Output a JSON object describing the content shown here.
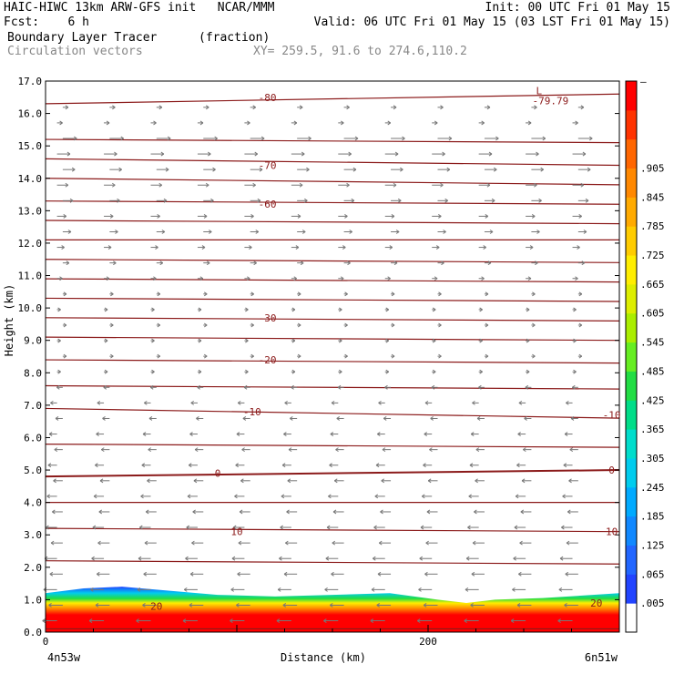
{
  "header": {
    "line1_left": "HAIC-HIWC 13km ARW-GFS init   NCAR/MMM",
    "line1_right": "Init: 00 UTC Fri 01 May 15",
    "line2_left": "Fcst:    6 h",
    "line2_right": "Valid: 06 UTC Fri 01 May 15 (03 LST Fri 01 May 15)",
    "line3_left": "Boundary Layer Tracer",
    "line3_units": "(fraction)",
    "line4_left": "Circulation vectors",
    "line4_xy": "XY= 259.5, 91.6 to 274.6,110.2"
  },
  "chart_data": {
    "type": "heatmap",
    "title": "Boundary Layer Tracer",
    "units": "(fraction)",
    "xlabel": "Distance (km)",
    "ylabel": "Height (km)",
    "xlim": [
      0,
      300
    ],
    "ylim": [
      0,
      17
    ],
    "y_ticks": [
      "0.0",
      "1.0",
      "2.0",
      "3.0",
      "4.0",
      "5.0",
      "6.0",
      "7.0",
      "8.0",
      "9.0",
      "10.0",
      "11.0",
      "12.0",
      "13.0",
      "14.0",
      "15.0",
      "16.0",
      "17.0"
    ],
    "x_ticks": [
      {
        "value": 0,
        "label": "0"
      },
      {
        "value": 200,
        "label": "200"
      }
    ],
    "x_endpoints": {
      "left": "4n53w",
      "right": "6n51w"
    },
    "colorbar": {
      "labels": [
        ".005",
        ".065",
        ".125",
        ".185",
        ".245",
        ".305",
        ".365",
        ".425",
        ".485",
        ".545",
        ".605",
        ".665",
        ".725",
        ".785",
        ".845",
        ".905"
      ],
      "top_label": "—",
      "colors": [
        "#ffffff",
        "#2244ff",
        "#2266ff",
        "#1188ff",
        "#00aaff",
        "#00ccee",
        "#00ddcc",
        "#00dd88",
        "#22dd44",
        "#66ee22",
        "#aaee00",
        "#ddee00",
        "#ffee00",
        "#ffcc00",
        "#ffaa00",
        "#ff8800",
        "#ff6600",
        "#ff3300",
        "#ff0000"
      ]
    },
    "boundary_layer_top_km": [
      {
        "x": 0,
        "y": 1.2
      },
      {
        "x": 20,
        "y": 1.35
      },
      {
        "x": 40,
        "y": 1.4
      },
      {
        "x": 60,
        "y": 1.3
      },
      {
        "x": 90,
        "y": 1.15
      },
      {
        "x": 120,
        "y": 1.1
      },
      {
        "x": 150,
        "y": 1.15
      },
      {
        "x": 180,
        "y": 1.2
      },
      {
        "x": 205,
        "y": 1.0
      },
      {
        "x": 220,
        "y": 0.9
      },
      {
        "x": 235,
        "y": 1.0
      },
      {
        "x": 260,
        "y": 1.05
      },
      {
        "x": 300,
        "y": 1.2
      }
    ],
    "contour_labels": [
      {
        "label": "-80",
        "x": 116,
        "y": 16.5
      },
      {
        "label": "L",
        "x": 258,
        "y": 16.7
      },
      {
        "label": "-79.79",
        "x": 264,
        "y": 16.4
      },
      {
        "label": "-70",
        "x": 116,
        "y": 14.4
      },
      {
        "label": "-60",
        "x": 116,
        "y": 13.2
      },
      {
        "label": "-30",
        "x": 116,
        "y": 9.7
      },
      {
        "label": "-20",
        "x": 116,
        "y": 8.4
      },
      {
        "label": "-10",
        "x": 108,
        "y": 6.8
      },
      {
        "label": "-10",
        "x": 296,
        "y": 6.7
      },
      {
        "label": "0",
        "x": 90,
        "y": 4.9
      },
      {
        "label": "0",
        "x": 296,
        "y": 5.0
      },
      {
        "label": "10",
        "x": 100,
        "y": 3.1
      },
      {
        "label": "10",
        "x": 296,
        "y": 3.1
      },
      {
        "label": "20",
        "x": 58,
        "y": 0.8
      },
      {
        "label": "20",
        "x": 288,
        "y": 0.9
      }
    ],
    "contour_levels_km": [
      [
        16.3,
        16.6
      ],
      [
        15.2,
        15.1
      ],
      [
        14.6,
        14.4
      ],
      [
        14.0,
        13.8
      ],
      [
        13.3,
        13.2
      ],
      [
        12.7,
        12.6
      ],
      [
        12.1,
        12.1
      ],
      [
        11.5,
        11.4
      ],
      [
        10.9,
        10.8
      ],
      [
        10.3,
        10.2
      ],
      [
        9.7,
        9.6
      ],
      [
        9.1,
        9.0
      ],
      [
        8.4,
        8.3
      ],
      [
        7.6,
        7.5
      ],
      [
        6.9,
        6.6
      ],
      [
        5.8,
        5.7
      ],
      [
        4.8,
        5.0
      ],
      [
        4.0,
        4.0
      ],
      [
        3.2,
        3.1
      ],
      [
        2.2,
        2.1
      ],
      [
        0.1,
        0.1
      ]
    ]
  }
}
